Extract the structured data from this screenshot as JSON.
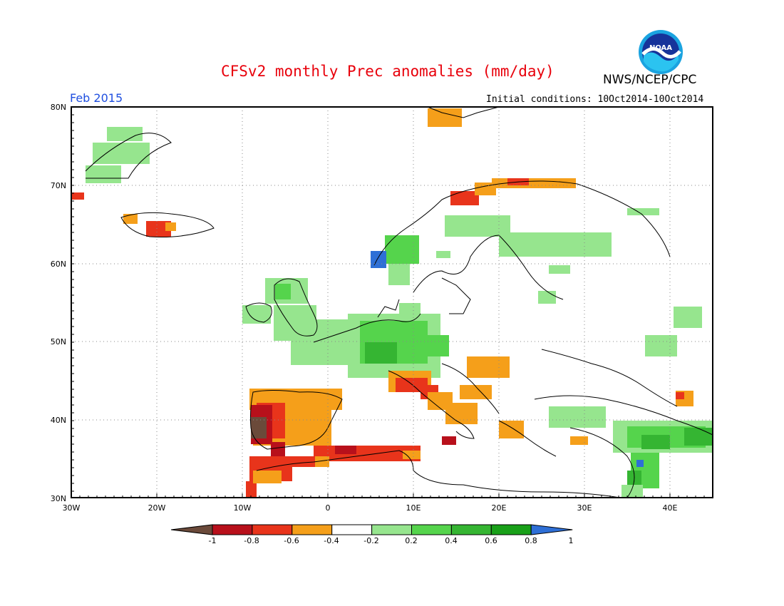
{
  "header": {
    "title": "CFSv2 monthly Prec anomalies (mm/day)",
    "agency": "NWS/NCEP/CPC",
    "month": "Feb 2015",
    "initial_conditions": "Initial conditions: 10Oct2014-10Oct2014",
    "logo_text": "NOAA"
  },
  "map": {
    "lat_labels": [
      "80N",
      "70N",
      "60N",
      "50N",
      "40N",
      "30N"
    ],
    "lon_labels": [
      "30W",
      "20W",
      "10W",
      "0",
      "10E",
      "20E",
      "30E",
      "40E"
    ],
    "lat_range": [
      30,
      80
    ],
    "lon_range": [
      -30,
      45
    ],
    "grid": "dotted"
  },
  "legend": {
    "labels": [
      "-1",
      "-0.8",
      "-0.6",
      "-0.4",
      "-0.2",
      "0.2",
      "0.4",
      "0.6",
      "0.8",
      "1"
    ],
    "colors": [
      "#6b4a3a",
      "#b8101b",
      "#e8341b",
      "#f59f1a",
      "#ffffff",
      "#96e58e",
      "#55d44c",
      "#35b532",
      "#19a019",
      "#2e6fd6"
    ]
  },
  "colors": {
    "title": "#e8000b",
    "month": "#1f4fe0",
    "ocean": "#ffffff",
    "coast": "#000000"
  },
  "anomaly_regions": [
    {
      "name": "iberia-dry",
      "category": "-0.4"
    },
    {
      "name": "portugal-very-dry",
      "category": "-1"
    },
    {
      "name": "north-africa-dry",
      "category": "-0.6"
    },
    {
      "name": "italy-dry",
      "category": "-0.4"
    },
    {
      "name": "balkans-dry",
      "category": "-0.4"
    },
    {
      "name": "norway-coast-dry",
      "category": "-0.6"
    },
    {
      "name": "central-europe-wet",
      "category": "0.4"
    },
    {
      "name": "british-isles-wet",
      "category": "0.2"
    },
    {
      "name": "scandinavia-wet",
      "category": "0.2"
    },
    {
      "name": "middle-east-wet",
      "category": "0.6"
    },
    {
      "name": "norway-coast-very-wet",
      "category": "1"
    }
  ]
}
